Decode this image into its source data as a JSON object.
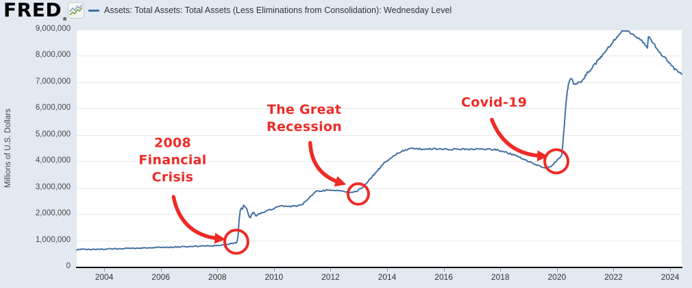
{
  "header": {
    "logo": "FRED",
    "registered_mark": "®",
    "chart_icon": "fred-line-chart-icon",
    "legend_label": "Assets: Total Assets: Total Assets (Less Eliminations from Consolidation): Wednesday Level"
  },
  "colors": {
    "background": "#e2e9f1",
    "plot_background": "#ffffff",
    "line": "#4270a4",
    "gridline": "#e9e9e9",
    "annotation_red": "#ee2b27",
    "axis_line": "#0d0d0d",
    "tick_text": "#464646"
  },
  "chart_data": {
    "type": "line",
    "legend": "Assets: Total Assets: Total Assets (Less Eliminations from Consolidation): Wednesday Level",
    "ylabel": "Millions of U.S. Dollars",
    "xlabel": "",
    "grid": true,
    "legend_position": "top-left",
    "xlim": [
      2003.03,
      2024.41
    ],
    "ylim": [
      0,
      9000000
    ],
    "x_ticks": [
      {
        "year": 2004,
        "label": "2004"
      },
      {
        "year": 2006,
        "label": "2006"
      },
      {
        "year": 2008,
        "label": "2008"
      },
      {
        "year": 2010,
        "label": "2010"
      },
      {
        "year": 2012,
        "label": "2012"
      },
      {
        "year": 2014,
        "label": "2014"
      },
      {
        "year": 2016,
        "label": "2016"
      },
      {
        "year": 2018,
        "label": "2018"
      },
      {
        "year": 2020,
        "label": "2020"
      },
      {
        "year": 2022,
        "label": "2022"
      },
      {
        "year": 2024,
        "label": "2024"
      }
    ],
    "y_ticks": [
      {
        "value": 0,
        "label": "0"
      },
      {
        "value": 1000000,
        "label": "1,000,000"
      },
      {
        "value": 2000000,
        "label": "2,000,000"
      },
      {
        "value": 3000000,
        "label": "3,000,000"
      },
      {
        "value": 4000000,
        "label": "4,000,000"
      },
      {
        "value": 5000000,
        "label": "5,000,000"
      },
      {
        "value": 6000000,
        "label": "6,000,000"
      },
      {
        "value": 7000000,
        "label": "7,000,000"
      },
      {
        "value": 8000000,
        "label": "8,000,000"
      },
      {
        "value": 9000000,
        "label": "9,000,000"
      }
    ],
    "series": [
      {
        "name": "Assets: Total Assets: Total Assets (Less Eliminations from Consolidation): Wednesday Level",
        "color": "#4270a4",
        "points": [
          [
            2003.03,
            650000
          ],
          [
            2003.3,
            656000
          ],
          [
            2003.6,
            662000
          ],
          [
            2003.9,
            670000
          ],
          [
            2004.2,
            680000
          ],
          [
            2004.5,
            688000
          ],
          [
            2004.8,
            696000
          ],
          [
            2005.1,
            705000
          ],
          [
            2005.4,
            712000
          ],
          [
            2005.7,
            720000
          ],
          [
            2006.0,
            730000
          ],
          [
            2006.3,
            740000
          ],
          [
            2006.6,
            750000
          ],
          [
            2006.9,
            762000
          ],
          [
            2007.2,
            772000
          ],
          [
            2007.5,
            782000
          ],
          [
            2007.8,
            792000
          ],
          [
            2008.0,
            800000
          ],
          [
            2008.2,
            830000
          ],
          [
            2008.4,
            862000
          ],
          [
            2008.55,
            888000
          ],
          [
            2008.68,
            905000
          ],
          [
            2008.73,
            1150000
          ],
          [
            2008.77,
            1800000
          ],
          [
            2008.81,
            2150000
          ],
          [
            2008.85,
            2240000
          ],
          [
            2008.89,
            2180000
          ],
          [
            2008.93,
            2310000
          ],
          [
            2008.97,
            2260000
          ],
          [
            2009.02,
            2240000
          ],
          [
            2009.07,
            2060000
          ],
          [
            2009.12,
            1920000
          ],
          [
            2009.17,
            1880000
          ],
          [
            2009.22,
            1990000
          ],
          [
            2009.27,
            2090000
          ],
          [
            2009.32,
            2010000
          ],
          [
            2009.37,
            1930000
          ],
          [
            2009.45,
            1990000
          ],
          [
            2009.55,
            2040000
          ],
          [
            2009.65,
            2080000
          ],
          [
            2009.75,
            2120000
          ],
          [
            2009.85,
            2160000
          ],
          [
            2009.95,
            2200000
          ],
          [
            2010.1,
            2250000
          ],
          [
            2010.25,
            2300000
          ],
          [
            2010.4,
            2320000
          ],
          [
            2010.55,
            2300000
          ],
          [
            2010.7,
            2290000
          ],
          [
            2010.85,
            2300000
          ],
          [
            2010.95,
            2330000
          ],
          [
            2011.1,
            2450000
          ],
          [
            2011.25,
            2610000
          ],
          [
            2011.4,
            2790000
          ],
          [
            2011.5,
            2860000
          ],
          [
            2011.65,
            2880000
          ],
          [
            2011.8,
            2890000
          ],
          [
            2011.95,
            2910000
          ],
          [
            2012.1,
            2900000
          ],
          [
            2012.3,
            2880000
          ],
          [
            2012.5,
            2860000
          ],
          [
            2012.65,
            2810000
          ],
          [
            2012.8,
            2840000
          ],
          [
            2012.95,
            2890000
          ],
          [
            2013.1,
            2980000
          ],
          [
            2013.3,
            3200000
          ],
          [
            2013.5,
            3450000
          ],
          [
            2013.7,
            3700000
          ],
          [
            2013.9,
            3930000
          ],
          [
            2014.1,
            4080000
          ],
          [
            2014.3,
            4250000
          ],
          [
            2014.5,
            4380000
          ],
          [
            2014.75,
            4470000
          ],
          [
            2015.0,
            4480000
          ],
          [
            2015.3,
            4460000
          ],
          [
            2015.6,
            4470000
          ],
          [
            2015.9,
            4460000
          ],
          [
            2016.2,
            4450000
          ],
          [
            2016.5,
            4460000
          ],
          [
            2016.8,
            4450000
          ],
          [
            2017.1,
            4460000
          ],
          [
            2017.4,
            4450000
          ],
          [
            2017.7,
            4450000
          ],
          [
            2017.95,
            4420000
          ],
          [
            2018.2,
            4340000
          ],
          [
            2018.5,
            4230000
          ],
          [
            2018.8,
            4100000
          ],
          [
            2019.0,
            4000000
          ],
          [
            2019.3,
            3850000
          ],
          [
            2019.55,
            3760000
          ],
          [
            2019.67,
            3740000
          ],
          [
            2019.78,
            3820000
          ],
          [
            2019.88,
            3910000
          ],
          [
            2019.98,
            3990000
          ],
          [
            2020.08,
            4130000
          ],
          [
            2020.16,
            4170000
          ],
          [
            2020.21,
            4670000
          ],
          [
            2020.26,
            5350000
          ],
          [
            2020.31,
            6080000
          ],
          [
            2020.36,
            6620000
          ],
          [
            2020.42,
            6980000
          ],
          [
            2020.47,
            7140000
          ],
          [
            2020.5,
            7170000
          ],
          [
            2020.56,
            7010000
          ],
          [
            2020.62,
            6920000
          ],
          [
            2020.68,
            6990000
          ],
          [
            2020.76,
            6970000
          ],
          [
            2020.85,
            7030000
          ],
          [
            2020.95,
            7120000
          ],
          [
            2021.05,
            7320000
          ],
          [
            2021.15,
            7420000
          ],
          [
            2021.25,
            7560000
          ],
          [
            2021.35,
            7690000
          ],
          [
            2021.45,
            7810000
          ],
          [
            2021.55,
            7940000
          ],
          [
            2021.65,
            8080000
          ],
          [
            2021.75,
            8220000
          ],
          [
            2021.85,
            8360000
          ],
          [
            2021.95,
            8500000
          ],
          [
            2022.05,
            8640000
          ],
          [
            2022.15,
            8760000
          ],
          [
            2022.25,
            8870000
          ],
          [
            2022.35,
            8940000
          ],
          [
            2022.42,
            8960000
          ],
          [
            2022.5,
            8930000
          ],
          [
            2022.6,
            8870000
          ],
          [
            2022.7,
            8810000
          ],
          [
            2022.8,
            8730000
          ],
          [
            2022.9,
            8650000
          ],
          [
            2023.0,
            8560000
          ],
          [
            2023.08,
            8470000
          ],
          [
            2023.15,
            8390000
          ],
          [
            2023.2,
            8340000
          ],
          [
            2023.23,
            8710000
          ],
          [
            2023.3,
            8640000
          ],
          [
            2023.4,
            8480000
          ],
          [
            2023.55,
            8240000
          ],
          [
            2023.7,
            8050000
          ],
          [
            2023.85,
            7890000
          ],
          [
            2024.0,
            7680000
          ],
          [
            2024.15,
            7520000
          ],
          [
            2024.3,
            7390000
          ],
          [
            2024.41,
            7300000
          ]
        ]
      }
    ],
    "annotations": [
      {
        "id": "financial-crisis-2008",
        "lines": [
          "2008",
          "Financial",
          "Crisis"
        ],
        "text_center": {
          "year": 2006.42,
          "value": 4030000
        },
        "arrow": {
          "from": {
            "year": 2006.45,
            "value": 2650000
          },
          "to": {
            "year": 2008.1,
            "value": 1060000
          },
          "bend": 34
        },
        "circle": {
          "year": 2008.67,
          "value": 950000,
          "radius": 17
        }
      },
      {
        "id": "great-recession",
        "lines": [
          "The Great",
          "Recession"
        ],
        "text_center": {
          "year": 2011.07,
          "value": 5620000
        },
        "arrow": {
          "from": {
            "year": 2011.28,
            "value": 4700000
          },
          "to": {
            "year": 2012.37,
            "value": 3180000
          },
          "bend": 26
        },
        "circle": {
          "year": 2012.98,
          "value": 2760000,
          "radius": 15
        }
      },
      {
        "id": "covid-19",
        "lines": [
          "Covid-19"
        ],
        "text_center": {
          "year": 2017.78,
          "value": 6220000
        },
        "arrow": {
          "from": {
            "year": 2017.7,
            "value": 5580000
          },
          "to": {
            "year": 2019.5,
            "value": 4200000
          },
          "bend": 30
        },
        "circle": {
          "year": 2019.98,
          "value": 4000000,
          "radius": 17
        }
      }
    ]
  }
}
